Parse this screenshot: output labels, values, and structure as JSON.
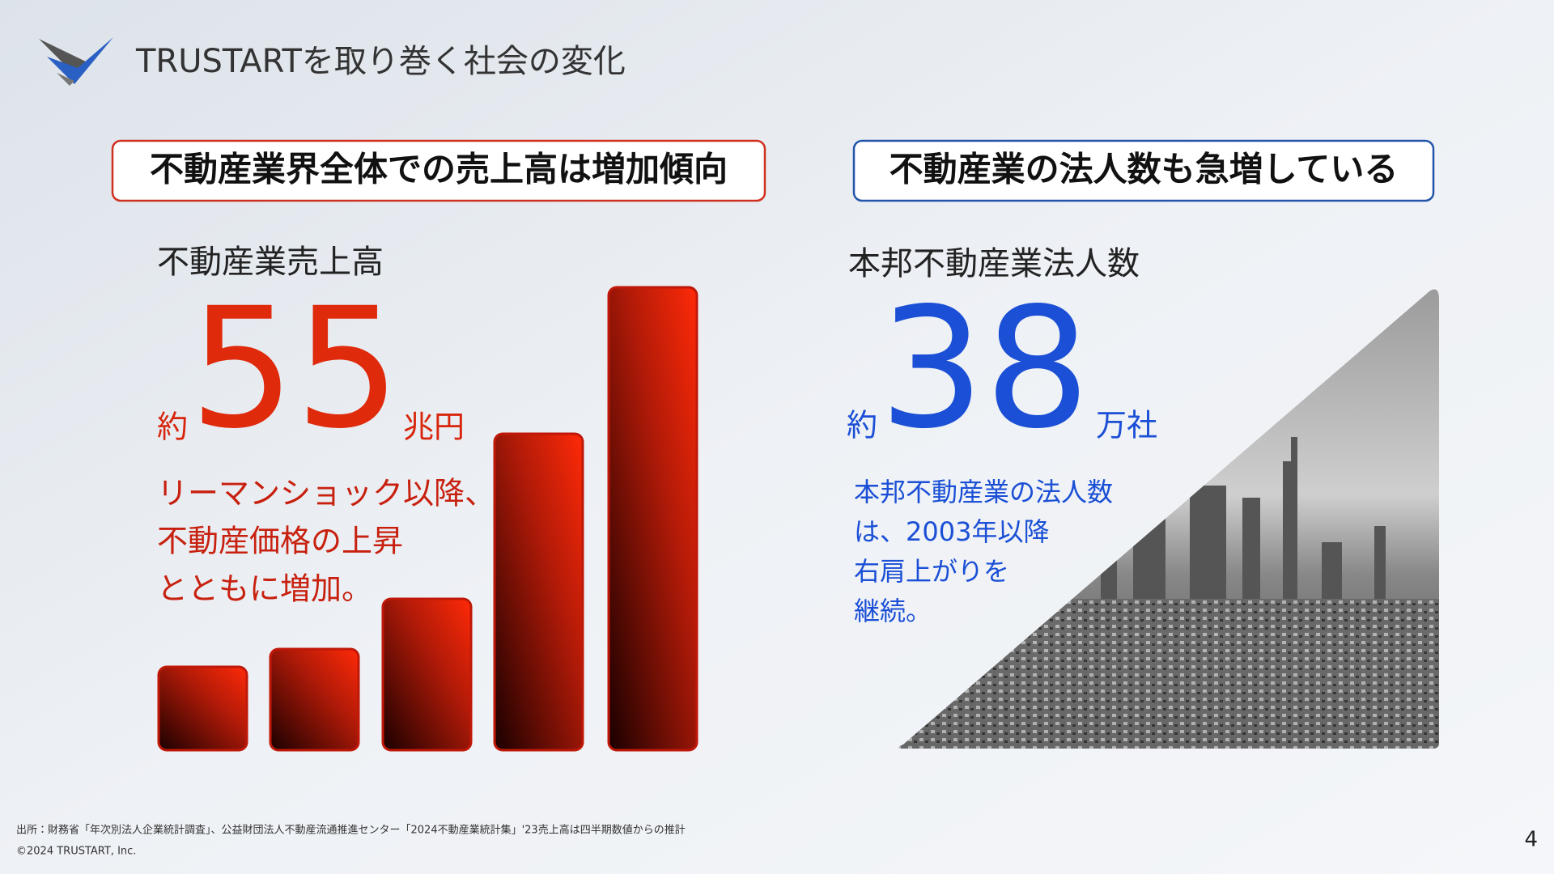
{
  "header": {
    "title": "TRUSTARTを取り巻く社会の変化"
  },
  "left": {
    "heading": "不動産業界全体での売上高は増加傾向",
    "label": "不動産業売上高",
    "prefix": "約",
    "number": "55",
    "unit": "兆円",
    "description": [
      "リーマンショック以降、",
      "不動産価格の上昇",
      "とともに増加。"
    ]
  },
  "right": {
    "heading": "不動産業の法人数も急増している",
    "label": "本邦不動産業法人数",
    "prefix": "約",
    "number": "38",
    "unit": "万社",
    "description": [
      "本邦不動産業の法人数",
      "は、2003年以降",
      "右肩上がりを",
      "継続。"
    ]
  },
  "footer": {
    "source": "出所：財務省「年次別法人企業統計調査」、公益財団法人不動産流通推進センター「2024不動産業統計集」'23売上高は四半期数値からの推計",
    "copyright": "©2024 TRUSTART, Inc.",
    "page": "4"
  }
}
